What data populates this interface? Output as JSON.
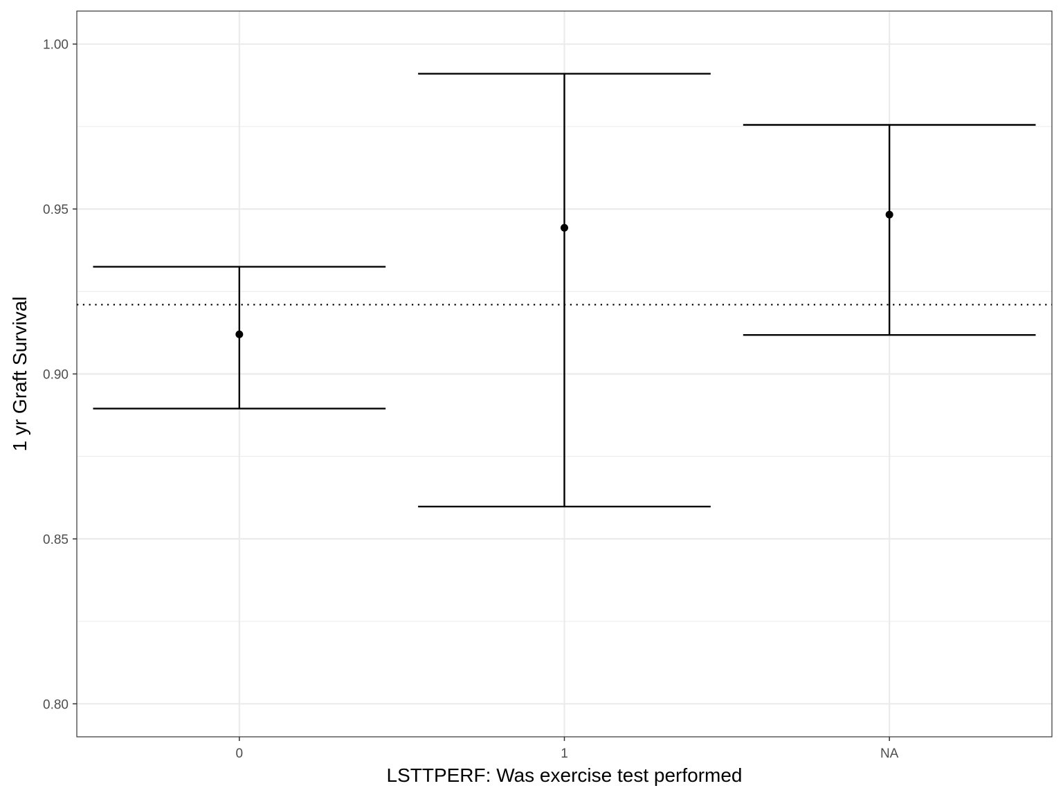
{
  "chart_data": {
    "type": "errorbar",
    "xlabel": "LSTTPERF: Was exercise test performed",
    "ylabel": "1 yr Graft Survival",
    "categories": [
      "0",
      "1",
      "NA"
    ],
    "series": [
      {
        "estimate": [
          0.912,
          0.9443,
          0.9483
        ],
        "lower": [
          0.8895,
          0.8598,
          0.9118
        ],
        "upper": [
          0.9325,
          0.991,
          0.9755
        ]
      }
    ],
    "reference_line": {
      "y": 0.921,
      "style": "dotted"
    },
    "ylim": [
      0.79,
      1.01
    ],
    "yticks": [
      0.8,
      0.85,
      0.9,
      0.95,
      1.0
    ],
    "ytick_labels": [
      "0.80",
      "0.85",
      "0.90",
      "0.95",
      "1.00"
    ],
    "grid": true,
    "colors": {
      "marks": "#000000",
      "grid": "#ebebeb",
      "panel_border": "#333333"
    }
  }
}
